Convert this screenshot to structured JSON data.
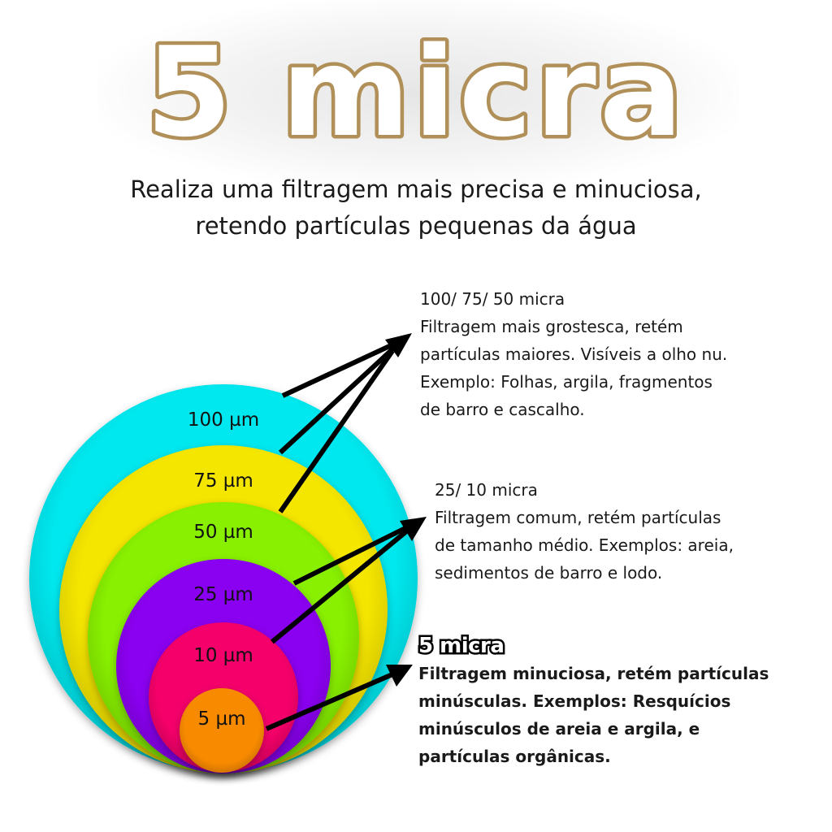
{
  "title": "5 micra",
  "subtitle": [
    "Realiza uma filtragem mais precisa e minuciosa,",
    "retendo partículas pequenas da água"
  ],
  "colors": {
    "title_stroke": "#b09058",
    "cyan": "#00e8ef",
    "yellow": "#f5e600",
    "green": "#88f000",
    "purple": "#8a00f0",
    "pink": "#f5006a",
    "orange": "#f88a00"
  },
  "rings": [
    {
      "label": "100 µm",
      "color": "#00e8ef"
    },
    {
      "label": "75 µm",
      "color": "#f5e600"
    },
    {
      "label": "50 µm",
      "color": "#88f000"
    },
    {
      "label": "25 µm",
      "color": "#8a00f0"
    },
    {
      "label": "10 µm",
      "color": "#f5006a"
    },
    {
      "label": "5 µm",
      "color": "#f88a00"
    }
  ],
  "blocks": [
    {
      "lines": [
        "100/ 75/ 50 micra",
        "Filtragem mais grostesca, retém",
        "partículas maiores. Visíveis a olho nu.",
        "Exemplo: Folhas, argila, fragmentos",
        "de barro e cascalho."
      ]
    },
    {
      "lines": [
        "25/ 10 micra",
        "Filtragem comum, retém partículas",
        "de tamanho médio. Exemplos: areia,",
        "sedimentos de barro e lodo."
      ]
    },
    {
      "heading": "5 micra",
      "lines": [
        "Filtragem minuciosa, retém partículas",
        "minúsculas. Exemplos: Resquícios",
        "minúsculos de areia e argila, e",
        "partículas orgânicas."
      ]
    }
  ]
}
